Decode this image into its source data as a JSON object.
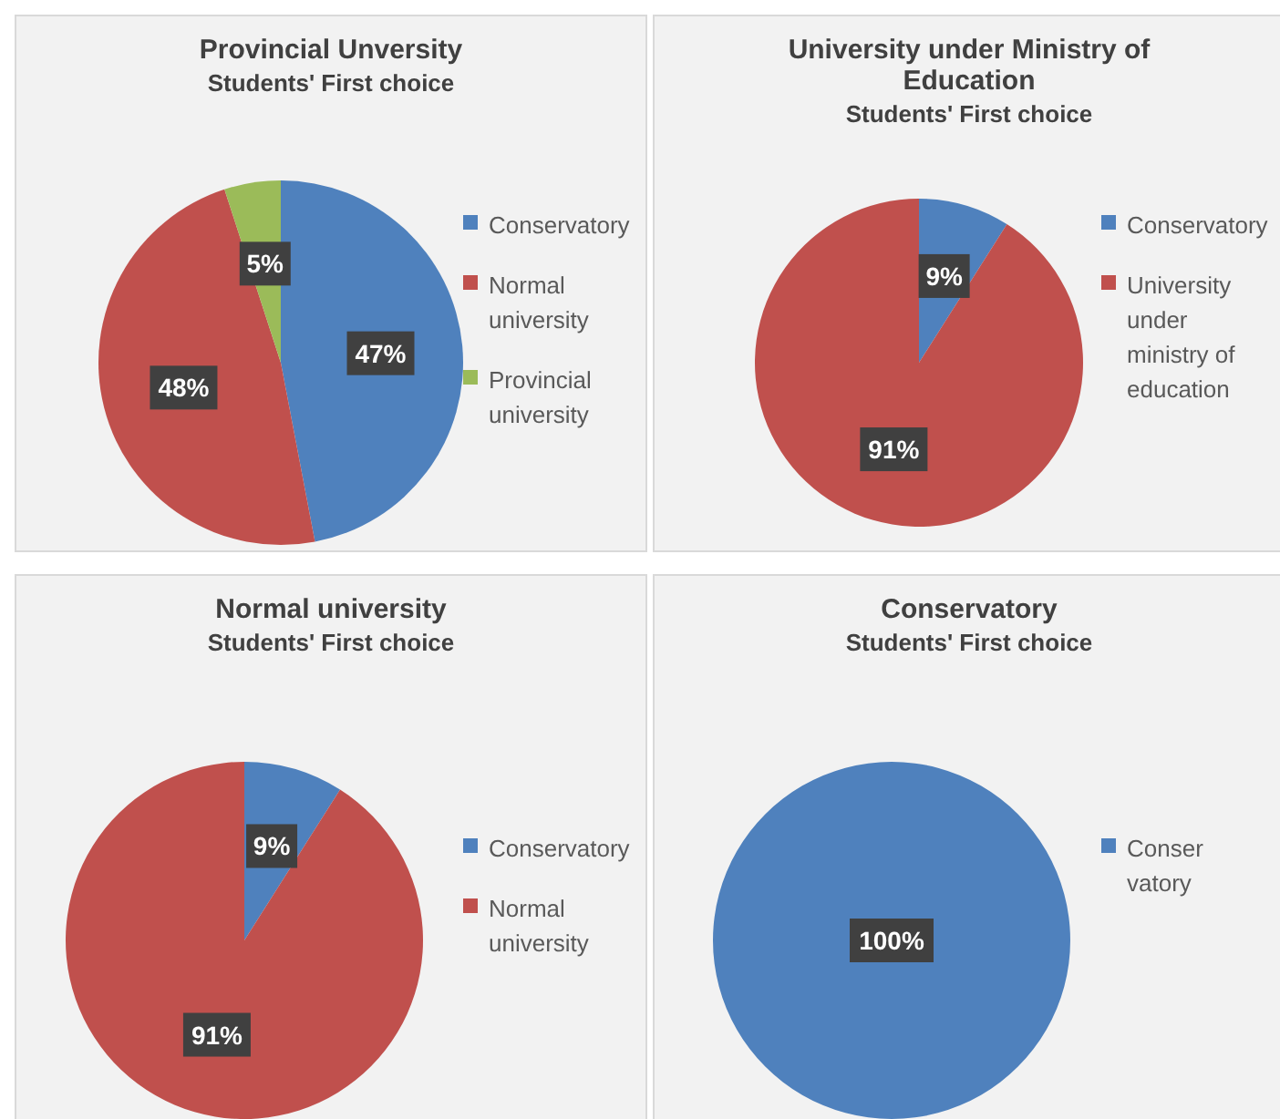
{
  "chart_data": [
    {
      "type": "pie",
      "title": "Provincial Unversity",
      "subtitle": "Students' First choice",
      "categories": [
        "Conservatory",
        "Normal university",
        "Provincial university"
      ],
      "values": [
        47,
        48,
        5
      ],
      "value_labels": [
        "47%",
        "48%",
        "5%"
      ],
      "colors": [
        "#4f81bd",
        "#c0504d",
        "#9bbb59"
      ],
      "legend": "right"
    },
    {
      "type": "pie",
      "title": "University under Ministry of Education",
      "subtitle": "Students' First choice",
      "categories": [
        "Conservatory",
        "University under ministry of education"
      ],
      "values": [
        9,
        91
      ],
      "value_labels": [
        "9%",
        "91%"
      ],
      "colors": [
        "#4f81bd",
        "#c0504d"
      ],
      "legend": "right"
    },
    {
      "type": "pie",
      "title": "Normal university",
      "subtitle": "Students' First choice",
      "categories": [
        "Conservatory",
        "Normal university"
      ],
      "values": [
        9,
        91
      ],
      "value_labels": [
        "9%",
        "91%"
      ],
      "colors": [
        "#4f81bd",
        "#c0504d"
      ],
      "legend": "right"
    },
    {
      "type": "pie",
      "title": "Conservatory",
      "subtitle": "Students' First choice",
      "categories": [
        "Conservatory"
      ],
      "values": [
        100
      ],
      "value_labels": [
        "100%"
      ],
      "colors": [
        "#4f81bd"
      ],
      "legend": "right"
    }
  ]
}
